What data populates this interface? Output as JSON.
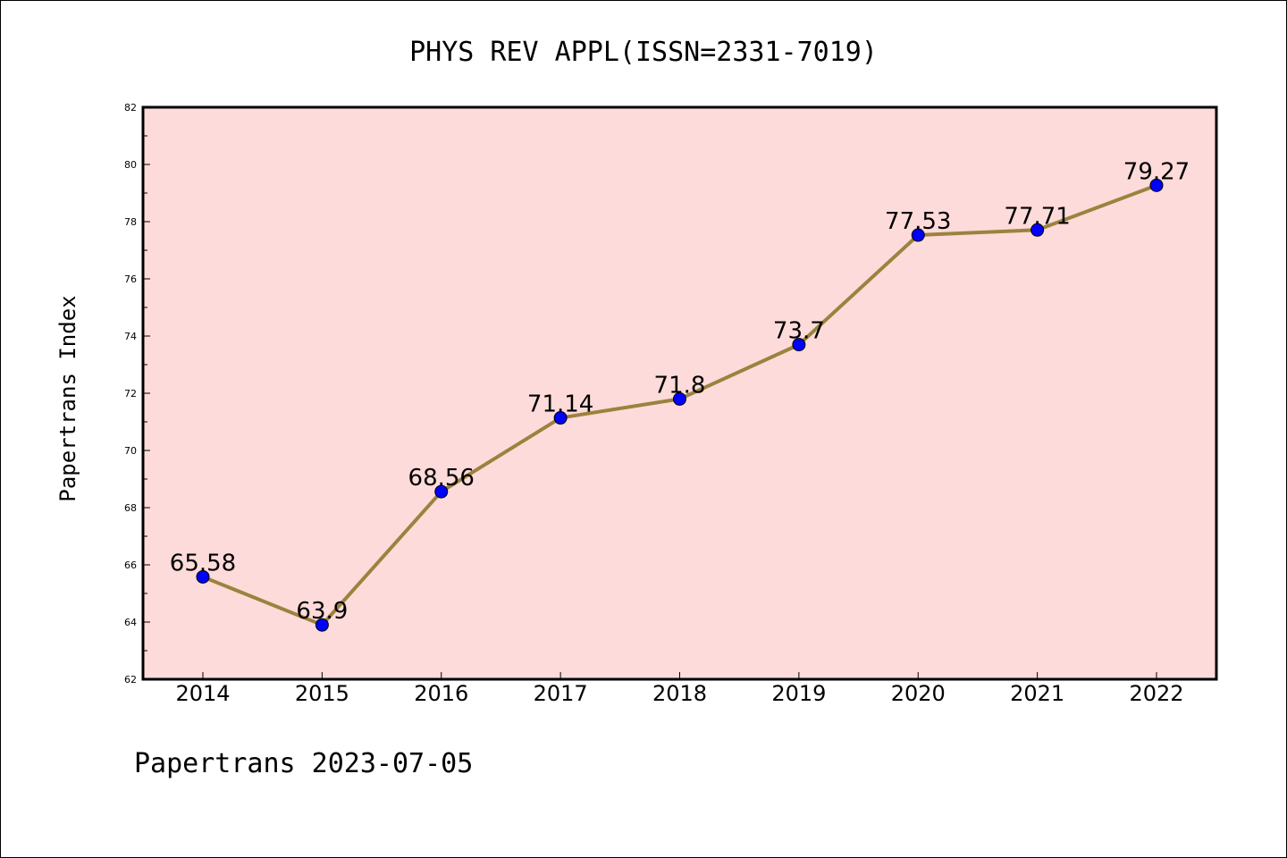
{
  "chart_data": {
    "type": "line",
    "title": "PHYS REV APPL(ISSN=2331-7019)",
    "ylabel": "Papertrans Index",
    "xlabel": "",
    "footer": "Papertrans 2023-07-05",
    "categories": [
      "2014",
      "2015",
      "2016",
      "2017",
      "2018",
      "2019",
      "2020",
      "2021",
      "2022"
    ],
    "values": [
      65.58,
      63.9,
      68.56,
      71.14,
      71.8,
      73.7,
      77.53,
      77.71,
      79.27
    ],
    "value_labels": [
      "65.58",
      "63.9",
      "68.56",
      "71.14",
      "71.8",
      "73.7",
      "77.53",
      "77.71",
      "79.27"
    ],
    "ylim": [
      62,
      82
    ],
    "yticks": [
      62,
      64,
      66,
      68,
      70,
      72,
      74,
      76,
      78,
      80,
      82
    ],
    "grid": false,
    "colors": {
      "plot_background": "#FDDBDA",
      "line": "#9C823E",
      "marker": "#0000FF"
    }
  }
}
